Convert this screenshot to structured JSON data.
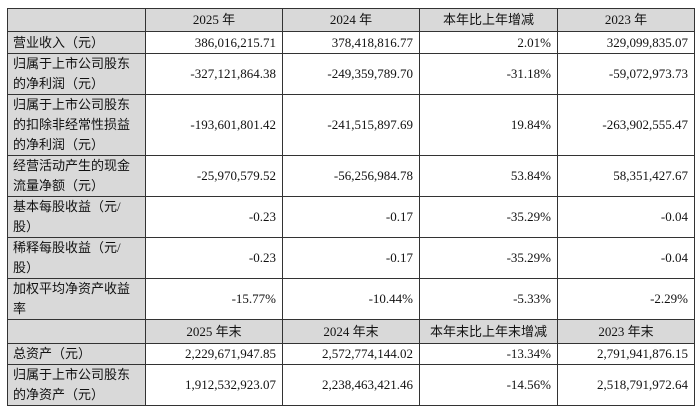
{
  "header": [
    "",
    "2025 年",
    "2024 年",
    "本年比上年增减",
    "2023 年"
  ],
  "rows": [
    {
      "label": "营业收入（元）",
      "values": [
        "386,016,215.71",
        "378,418,816.77",
        "2.01%",
        "329,099,835.07"
      ]
    },
    {
      "label": "归属于上市公司股东的净利润（元）",
      "values": [
        "-327,121,864.38",
        "-249,359,789.70",
        "-31.18%",
        "-59,072,973.73"
      ]
    },
    {
      "label": "归属于上市公司股东的扣除非经常性损益的净利润（元）",
      "values": [
        "-193,601,801.42",
        "-241,515,897.69",
        "19.84%",
        "-263,902,555.47"
      ]
    },
    {
      "label": "经营活动产生的现金流量净额（元）",
      "values": [
        "-25,970,579.52",
        "-56,256,984.78",
        "53.84%",
        "58,351,427.67"
      ]
    },
    {
      "label": "基本每股收益（元/股）",
      "values": [
        "-0.23",
        "-0.17",
        "-35.29%",
        "-0.04"
      ]
    },
    {
      "label": "稀释每股收益（元/股）",
      "values": [
        "-0.23",
        "-0.17",
        "-35.29%",
        "-0.04"
      ]
    },
    {
      "label": "加权平均净资产收益率",
      "values": [
        "-15.77%",
        "-10.44%",
        "-5.33%",
        "-2.29%"
      ]
    }
  ],
  "header2": [
    "",
    "2025 年末",
    "2024 年末",
    "本年末比上年末增减",
    "2023 年末"
  ],
  "rows2": [
    {
      "label": "总资产（元）",
      "values": [
        "2,229,671,947.85",
        "2,572,774,144.02",
        "-13.34%",
        "2,791,941,876.15"
      ]
    },
    {
      "label": "归属于上市公司股东的净资产（元）",
      "values": [
        "1,912,532,923.07",
        "2,238,463,421.46",
        "-14.56%",
        "2,518,791,972.64"
      ]
    }
  ]
}
